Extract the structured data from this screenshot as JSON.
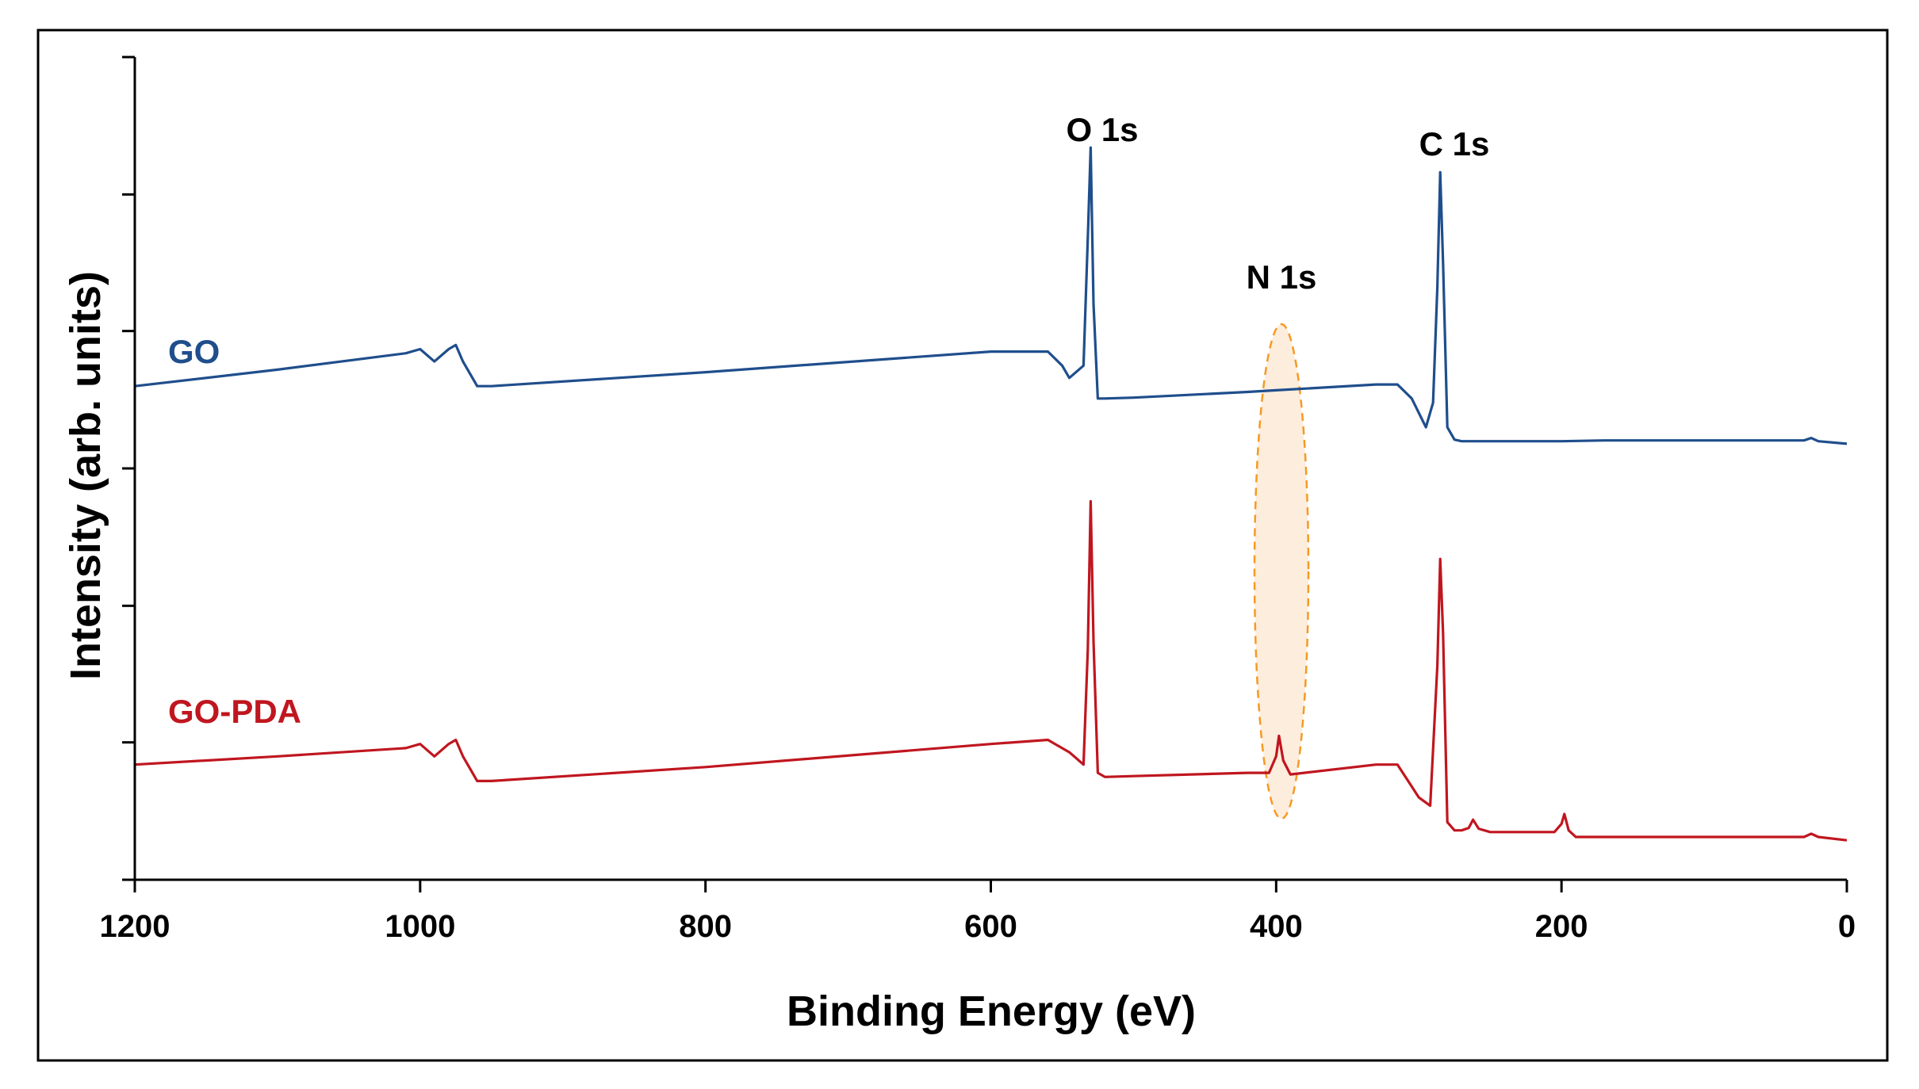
{
  "chart_data": {
    "type": "line",
    "title": "",
    "xlabel": "Binding Energy (eV)",
    "ylabel": "Intensity (arb. units)",
    "xlim": [
      1200,
      0
    ],
    "ylim": [
      0,
      1.0
    ],
    "x_ticks": [
      1200,
      1000,
      800,
      600,
      400,
      200,
      0
    ],
    "y_ticks": [
      0.0,
      0.167,
      0.333,
      0.5,
      0.667,
      0.833,
      1.0
    ],
    "y_tick_labels": false,
    "grid": false,
    "series": [
      {
        "name": "GO",
        "color": "#1f4e8c",
        "x": [
          1200,
          1100,
          1010,
          1000,
          990,
          980,
          975,
          970,
          960,
          950,
          800,
          600,
          560,
          550,
          545,
          535,
          532,
          530,
          528,
          525,
          520,
          500,
          420,
          400,
          330,
          315,
          305,
          295,
          290,
          287,
          285,
          283,
          280,
          275,
          270,
          230,
          200,
          170,
          30,
          25,
          20,
          0
        ],
        "y": [
          0.6,
          0.62,
          0.64,
          0.645,
          0.63,
          0.645,
          0.65,
          0.63,
          0.6,
          0.6,
          0.617,
          0.642,
          0.642,
          0.625,
          0.61,
          0.625,
          0.78,
          0.89,
          0.7,
          0.585,
          0.585,
          0.586,
          0.593,
          0.595,
          0.602,
          0.602,
          0.585,
          0.55,
          0.58,
          0.72,
          0.86,
          0.75,
          0.55,
          0.535,
          0.533,
          0.533,
          0.533,
          0.534,
          0.534,
          0.537,
          0.533,
          0.53
        ]
      },
      {
        "name": "GO-PDA",
        "color": "#c0161f",
        "x": [
          1200,
          1100,
          1010,
          1000,
          990,
          980,
          975,
          970,
          960,
          950,
          800,
          600,
          560,
          555,
          545,
          535,
          532,
          530,
          528,
          525,
          520,
          500,
          420,
          405,
          400,
          398,
          395,
          390,
          330,
          315,
          300,
          292,
          287,
          285,
          283,
          280,
          275,
          270,
          265,
          262,
          258,
          250,
          205,
          200,
          198,
          195,
          190,
          30,
          25,
          20,
          0
        ],
        "y": [
          0.14,
          0.15,
          0.16,
          0.165,
          0.15,
          0.165,
          0.17,
          0.15,
          0.12,
          0.12,
          0.137,
          0.165,
          0.17,
          0.165,
          0.155,
          0.14,
          0.28,
          0.46,
          0.29,
          0.13,
          0.125,
          0.126,
          0.13,
          0.13,
          0.15,
          0.175,
          0.145,
          0.128,
          0.14,
          0.14,
          0.1,
          0.09,
          0.26,
          0.39,
          0.3,
          0.07,
          0.06,
          0.06,
          0.063,
          0.073,
          0.062,
          0.058,
          0.058,
          0.068,
          0.08,
          0.06,
          0.052,
          0.052,
          0.056,
          0.052,
          0.048
        ]
      }
    ],
    "annotations": [
      {
        "text": "O 1s",
        "x": 530
      },
      {
        "text": "C 1s",
        "x": 285
      },
      {
        "text": "N 1s",
        "x": 400
      }
    ],
    "highlight": {
      "label": "N 1s region",
      "x_center": 400,
      "color": "#f59a23"
    }
  }
}
